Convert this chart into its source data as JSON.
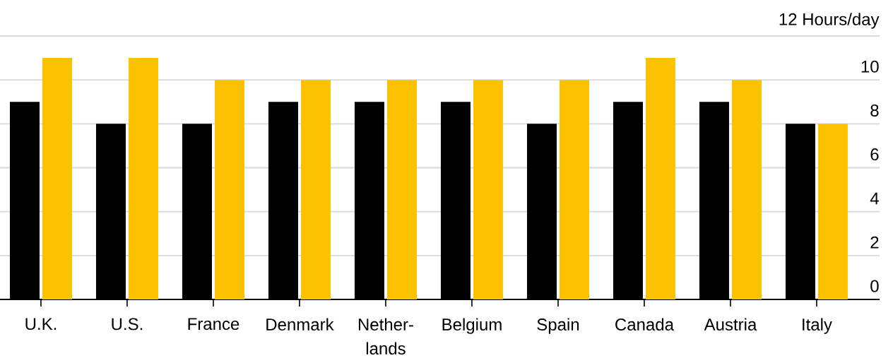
{
  "chart_data": {
    "type": "bar",
    "categories": [
      "U.K.",
      "U.S.",
      "France",
      "Denmark",
      "Nether-lands",
      "Belgium",
      "Spain",
      "Canada",
      "Austria",
      "Italy"
    ],
    "series": [
      {
        "color": "#000000",
        "values": [
          9,
          8,
          8,
          9,
          9,
          9,
          8,
          9,
          9,
          8
        ]
      },
      {
        "color": "#fcc200",
        "values": [
          11,
          11,
          10,
          10,
          10,
          10,
          10,
          11,
          10,
          8
        ]
      }
    ],
    "ylim": [
      0,
      12
    ],
    "yticks": [
      0,
      2,
      4,
      6,
      8,
      10,
      {
        "value": 12,
        "label": "12 Hours/day"
      }
    ],
    "grid": "y"
  }
}
